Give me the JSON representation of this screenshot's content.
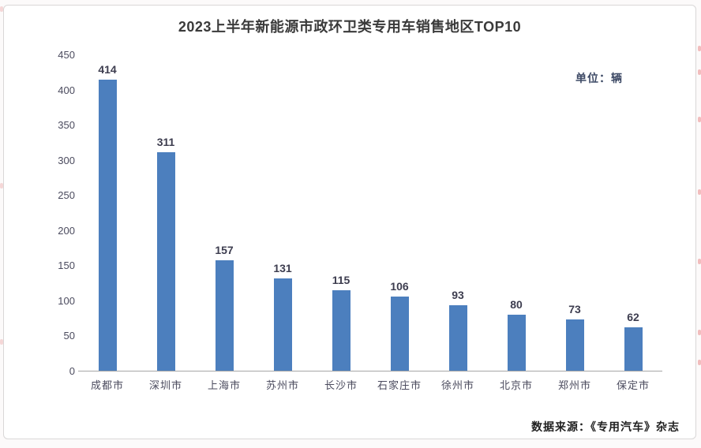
{
  "chart": {
    "title": "2023上半年新能源市政环卫类专用车销售地区TOP10",
    "unit_label": "单位：辆",
    "source_label": "数据来源：《专用汽车》杂志"
  },
  "chart_data": {
    "type": "bar",
    "title": "2023上半年新能源市政环卫类专用车销售地区TOP10",
    "categories": [
      "成都市",
      "深圳市",
      "上海市",
      "苏州市",
      "长沙市",
      "石家庄市",
      "徐州市",
      "北京市",
      "郑州市",
      "保定市"
    ],
    "values": [
      414,
      311,
      157,
      131,
      115,
      106,
      93,
      80,
      73,
      62
    ],
    "unit": "辆",
    "xlabel": "",
    "ylabel": "",
    "ylim": [
      0,
      450
    ],
    "yticks": [
      0,
      50,
      100,
      150,
      200,
      250,
      300,
      350,
      400,
      450
    ],
    "bar_color": "#4C7FBE",
    "grid": false,
    "data_labels": true,
    "legend": "none",
    "source": "数据来源：《专用汽车》杂志"
  }
}
